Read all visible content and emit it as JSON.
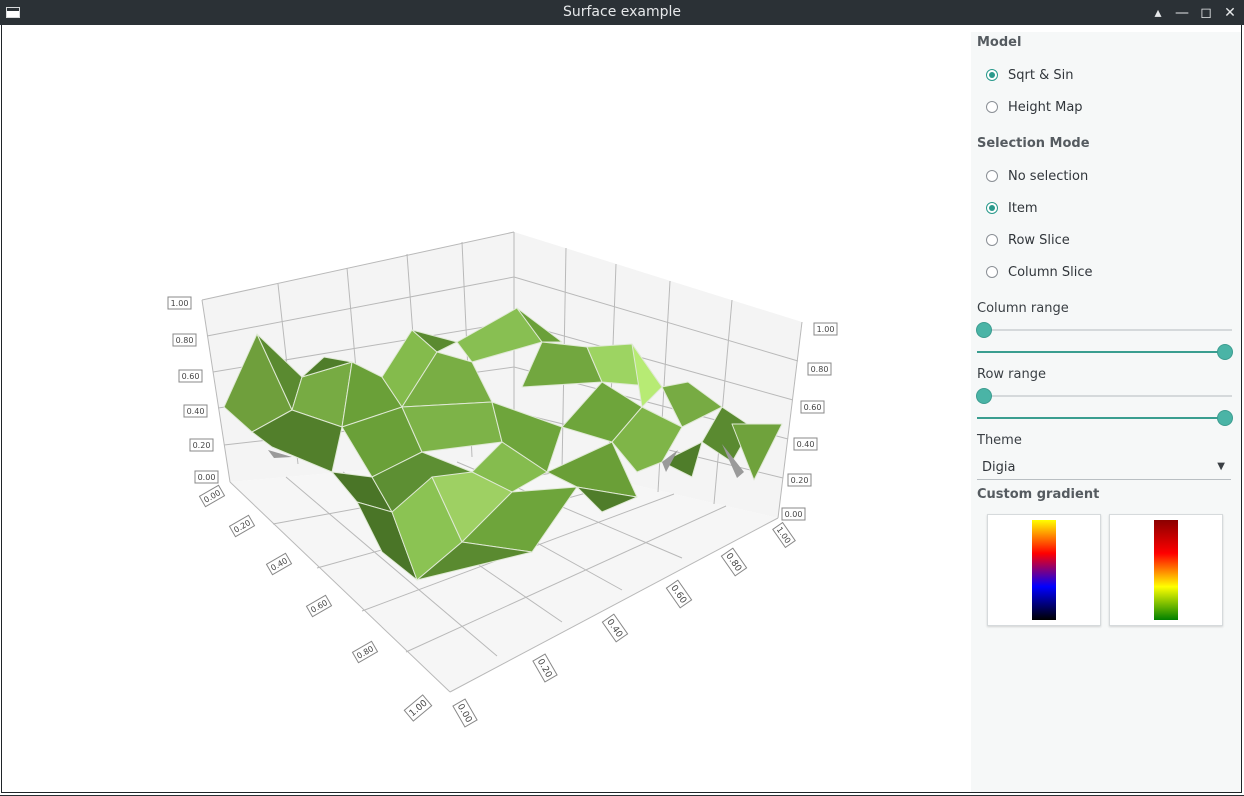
{
  "window": {
    "title": "Surface example"
  },
  "panel": {
    "model_label": "Model",
    "model_options": [
      "Sqrt & Sin",
      "Height Map"
    ],
    "model_selected": 0,
    "selection_label": "Selection Mode",
    "selection_options": [
      "No selection",
      "Item",
      "Row Slice",
      "Column Slice"
    ],
    "selection_selected": 1,
    "column_range_label": "Column range",
    "row_range_label": "Row range",
    "column_range": {
      "min": 0.0,
      "max": 1.0
    },
    "row_range": {
      "min": 0.0,
      "max": 1.0
    },
    "theme_label": "Theme",
    "theme_value": "Digia",
    "custom_gradient_label": "Custom gradient",
    "gradient_1": [
      "#ffff00",
      "#ff0000",
      "#0000ff",
      "#000000"
    ],
    "gradient_2": [
      "#8b0000",
      "#ff0000",
      "#ffff00",
      "#008000"
    ]
  },
  "graph": {
    "y_axis_labels": [
      "1.00",
      "0.80",
      "0.60",
      "0.40",
      "0.20",
      "0.00"
    ],
    "x_axis_labels": [
      "0.00",
      "0.20",
      "0.40",
      "0.60",
      "0.80",
      "1.00"
    ],
    "z_axis_labels": [
      "0.00",
      "0.20",
      "0.40",
      "0.60",
      "0.80",
      "1.00"
    ],
    "surface_color": "#7ab648"
  }
}
